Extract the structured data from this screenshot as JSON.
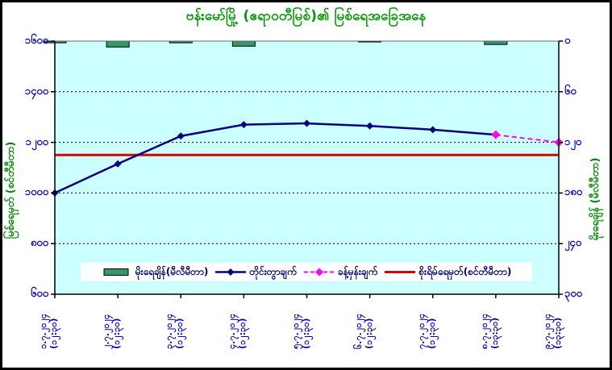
{
  "title": "ဗန်းမော်မြို့ (ဧရာဝတီမြစ်)၏ မြစ်ရေအခြေအနေ",
  "frame": {
    "border_color": "#000000",
    "bg": "#FFFFFF"
  },
  "axes": {
    "left_title": "မြစ်ရေမှတ် (စင်တီမီတာ)",
    "right_title": "မိုးရေချိန် (မီလီမီတာ)",
    "left_ticks": [
      {
        "label": "၁၆၀၀",
        "value": 1600
      },
      {
        "label": "၁၄၀၀",
        "value": 1400
      },
      {
        "label": "၁၂၀၀",
        "value": 1200
      },
      {
        "label": "၁၀၀၀",
        "value": 1000
      },
      {
        "label": "၈၀၀",
        "value": 800
      },
      {
        "label": "၆၀၀",
        "value": 600
      }
    ],
    "right_ticks": [
      {
        "label": "၀",
        "value": 0
      },
      {
        "label": "၆၀",
        "value": 60
      },
      {
        "label": "၁၂၀",
        "value": 120
      },
      {
        "label": "၁၈၀",
        "value": 180
      },
      {
        "label": "၂၄၀",
        "value": 240
      },
      {
        "label": "၃၀၀",
        "value": 300
      }
    ]
  },
  "legend": [
    {
      "label": "မိုးရေချိန်(မီလီမီတာ)",
      "type": "bar",
      "color": "#339966"
    },
    {
      "label": "တိုင်းတွာချက်",
      "type": "line-marker",
      "color": "#000080"
    },
    {
      "label": "ခန့်မှန်းချက်",
      "type": "dash-marker",
      "color": "#FF00FF"
    },
    {
      "label": "စိုးရိမ်ရေမှတ်(စင်တီမီတာ)",
      "type": "line",
      "color": "#DD0000"
    }
  ],
  "chart_data": {
    "type": "bar+line combo",
    "categories": [
      "၁.၇.၂၀၂၄",
      "၂.၇.၂၀၂၄",
      "၃.၇.၂၀၂၄",
      "၄.၇.၂၀၂၄",
      "၅.၇.၂၀၂၄",
      "၆.၇.၂၀၂၄",
      "၇.၇.၂၀၂၄",
      "၈.၇.၂၀၂၄",
      "၉.၇.၂၀၂၄"
    ],
    "times": [
      "(၁၂:၃၀)",
      "(၁၂:၃၀)",
      "(၁၂:၃၀)",
      "(၁၂:၃၀)",
      "(၁၂:၃၀)",
      "(၁၂:၃၀)",
      "(၁၂:၃၀)",
      "(၁၃:၃၀)",
      "(၁၃:၃၀)"
    ],
    "series": [
      {
        "name": "မိုးရေချိန်(မီလီမီတာ)",
        "type": "bar",
        "axis": "right",
        "unit": "mm",
        "color": "#339966",
        "values": [
          2,
          7,
          2,
          6,
          0,
          1,
          0,
          4,
          0
        ]
      },
      {
        "name": "တိုင်းတွာချက်",
        "type": "line",
        "axis": "left",
        "unit": "cm",
        "color": "#000080",
        "values": [
          1000,
          1115,
          1225,
          1270,
          1275,
          1265,
          1250,
          1230,
          null
        ]
      },
      {
        "name": "ခန့်မှန်းချက်",
        "type": "dashed-line",
        "axis": "left",
        "unit": "cm",
        "color": "#FF00FF",
        "values": [
          null,
          null,
          null,
          null,
          null,
          null,
          null,
          1230,
          1200
        ]
      },
      {
        "name": "စိုးရိမ်ရေမှတ်(စင်တီမီတာ)",
        "type": "hline",
        "axis": "left",
        "unit": "cm",
        "color": "#DD0000",
        "value": 1150
      }
    ],
    "left_ylim": [
      600,
      1600
    ],
    "right_ylim": [
      0,
      300
    ],
    "right_axis_inverted": true,
    "grid": "horizontal dotted lines at 800, 1000, 1200, 1400",
    "legend_position": "bottom inside plot"
  },
  "colors": {
    "plot_bg": "#CCFFFF",
    "title": "#009900",
    "axis_labels": "#0000CC",
    "axis_titles": "#008800",
    "legend_text": "#000080"
  }
}
